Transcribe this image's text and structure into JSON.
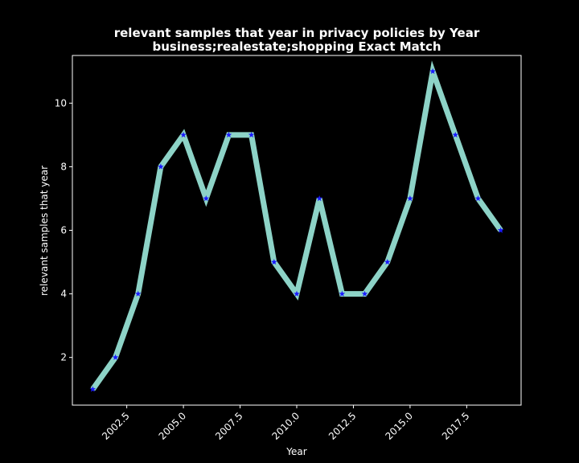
{
  "chart_data": {
    "type": "line",
    "title": "relevant samples that year in privacy policies by Year",
    "subtitle": "business;realestate;shopping Exact Match",
    "xlabel": "Year",
    "ylabel": "relevant samples that year",
    "x": [
      2001,
      2002,
      2003,
      2004,
      2005,
      2006,
      2007,
      2008,
      2009,
      2010,
      2011,
      2012,
      2013,
      2014,
      2015,
      2016,
      2017,
      2018,
      2019
    ],
    "series": [
      {
        "values": [
          1,
          2,
          4,
          8,
          9,
          7,
          9,
          9,
          5,
          4,
          7,
          4,
          4,
          5,
          7,
          11,
          9,
          7,
          6
        ]
      }
    ],
    "xlim": [
      2000.1,
      2019.9
    ],
    "ylim": [
      0.5,
      11.5
    ],
    "xticks": [
      2002.5,
      2005.0,
      2007.5,
      2010.0,
      2012.5,
      2015.0,
      2017.5
    ],
    "xtick_labels": [
      "2002.5",
      "2005.0",
      "2007.5",
      "2010.0",
      "2012.5",
      "2015.0",
      "2017.5"
    ],
    "yticks": [
      2,
      4,
      6,
      8,
      10
    ],
    "ytick_labels": [
      "2",
      "4",
      "6",
      "8",
      "10"
    ],
    "xtick_rotation_deg": 45,
    "grid": false,
    "legend": "none",
    "marker": "star",
    "colors": {
      "background": "#000000",
      "line": "#8dd3c7",
      "marker": "#1a1aff",
      "text": "#ffffff",
      "axes": "#ffffff"
    }
  }
}
